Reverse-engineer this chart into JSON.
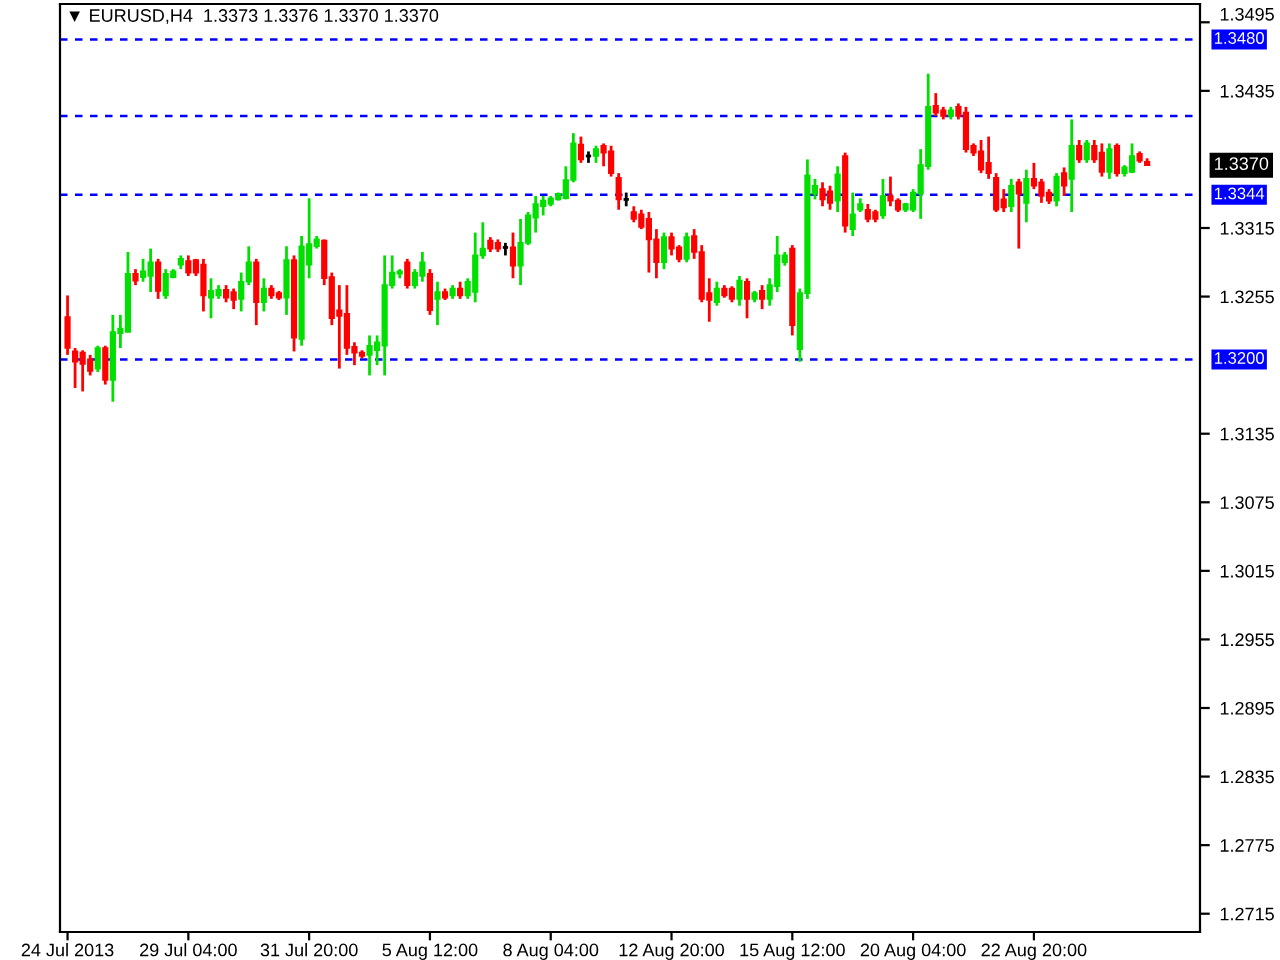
{
  "chart_data": {
    "type": "candlestick",
    "title": "▼ EURUSD,H4  1.3373 1.3376 1.3370 1.3370",
    "categories": [
      "24 Jul 2013",
      null,
      null,
      null,
      null,
      null,
      null,
      null,
      null,
      null,
      null,
      null,
      null,
      null,
      null,
      null,
      "29 Jul 04:00",
      null,
      null,
      null,
      null,
      null,
      null,
      null,
      null,
      null,
      null,
      null,
      null,
      null,
      null,
      null,
      "31 Jul 20:00",
      null,
      null,
      null,
      null,
      null,
      null,
      null,
      null,
      null,
      null,
      null,
      null,
      null,
      null,
      null,
      "5 Aug 12:00",
      null,
      null,
      null,
      null,
      null,
      null,
      null,
      null,
      null,
      null,
      null,
      null,
      null,
      null,
      null,
      "8 Aug 04:00",
      null,
      null,
      null,
      null,
      null,
      null,
      null,
      null,
      null,
      null,
      null,
      null,
      null,
      null,
      null,
      "12 Aug 20:00",
      null,
      null,
      null,
      null,
      null,
      null,
      null,
      null,
      null,
      null,
      null,
      null,
      null,
      null,
      null,
      "15 Aug 12:00",
      null,
      null,
      null,
      null,
      null,
      null,
      null,
      null,
      null,
      null,
      null,
      null,
      null,
      null,
      null,
      "20 Aug 04:00",
      null,
      null,
      null,
      null,
      null,
      null,
      null,
      null,
      null,
      null,
      null,
      null,
      null,
      null,
      null,
      "22 Aug 20:00",
      null,
      null,
      null,
      null,
      null,
      null,
      null,
      null,
      null,
      null,
      null,
      null,
      null,
      null,
      null
    ],
    "ohlc": [
      [
        1.3237,
        1.3256,
        1.3204,
        1.321
      ],
      [
        1.3207,
        1.321,
        1.3175,
        1.3198
      ],
      [
        1.3206,
        1.3208,
        1.3172,
        1.3196
      ],
      [
        1.32,
        1.3204,
        1.3186,
        1.319
      ],
      [
        1.3192,
        1.3212,
        1.3189,
        1.321
      ],
      [
        1.321,
        1.3212,
        1.3178,
        1.3182
      ],
      [
        1.3182,
        1.3239,
        1.3163,
        1.3224
      ],
      [
        1.3223,
        1.3239,
        1.321,
        1.3227
      ],
      [
        1.3224,
        1.3294,
        1.3224,
        1.3275
      ],
      [
        1.3275,
        1.3279,
        1.3265,
        1.3269
      ],
      [
        1.3272,
        1.3288,
        1.3268,
        1.3277
      ],
      [
        1.3273,
        1.3297,
        1.3259,
        1.3285
      ],
      [
        1.3285,
        1.3288,
        1.3253,
        1.326
      ],
      [
        1.3256,
        1.3279,
        1.3253,
        1.3275
      ],
      [
        1.3272,
        1.3279,
        1.3271,
        1.3277
      ],
      [
        1.3283,
        1.3291,
        1.3279,
        1.3288
      ],
      [
        1.3286,
        1.3291,
        1.3273,
        1.3276
      ],
      [
        1.3287,
        1.3288,
        1.3273,
        1.3276
      ],
      [
        1.3283,
        1.3288,
        1.3242,
        1.3256
      ],
      [
        1.3254,
        1.3271,
        1.3236,
        1.326
      ],
      [
        1.3256,
        1.3265,
        1.3253,
        1.3261
      ],
      [
        1.3261,
        1.3265,
        1.325,
        1.3254
      ],
      [
        1.3259,
        1.3262,
        1.3244,
        1.3252
      ],
      [
        1.3253,
        1.3276,
        1.3242,
        1.3268
      ],
      [
        1.3268,
        1.3299,
        1.3265,
        1.3285
      ],
      [
        1.3285,
        1.3288,
        1.323,
        1.325
      ],
      [
        1.325,
        1.3271,
        1.3242,
        1.3262
      ],
      [
        1.3262,
        1.3265,
        1.3253,
        1.3256
      ],
      [
        1.3258,
        1.326,
        1.3252,
        1.3254
      ],
      [
        1.3254,
        1.3299,
        1.3239,
        1.3287
      ],
      [
        1.3287,
        1.3291,
        1.3207,
        1.3219
      ],
      [
        1.3218,
        1.3308,
        1.3212,
        1.3299
      ],
      [
        1.3283,
        1.3341,
        1.3271,
        1.3301
      ],
      [
        1.3299,
        1.3308,
        1.3297,
        1.3305
      ],
      [
        1.3304,
        1.3305,
        1.3265,
        1.3271
      ],
      [
        1.3272,
        1.3276,
        1.323,
        1.3236
      ],
      [
        1.3243,
        1.3265,
        1.3192,
        1.3238
      ],
      [
        1.324,
        1.3265,
        1.3204,
        1.321
      ],
      [
        1.3211,
        1.3215,
        1.3195,
        1.3206
      ],
      [
        1.3206,
        1.3208,
        1.3201,
        1.3203
      ],
      [
        1.3204,
        1.3221,
        1.3186,
        1.3212
      ],
      [
        1.3208,
        1.3221,
        1.3195,
        1.3215
      ],
      [
        1.3212,
        1.3291,
        1.3186,
        1.3265
      ],
      [
        1.3265,
        1.3291,
        1.3262,
        1.3276
      ],
      [
        1.3275,
        1.3279,
        1.3271,
        1.3277
      ],
      [
        1.3285,
        1.3288,
        1.3262,
        1.3265
      ],
      [
        1.3265,
        1.3279,
        1.3262,
        1.3276
      ],
      [
        1.3273,
        1.3294,
        1.3268,
        1.3285
      ],
      [
        1.3275,
        1.3279,
        1.3239,
        1.3243
      ],
      [
        1.3253,
        1.3268,
        1.323,
        1.3259
      ],
      [
        1.3259,
        1.3262,
        1.3252,
        1.3254
      ],
      [
        1.3256,
        1.3265,
        1.3253,
        1.3262
      ],
      [
        1.3262,
        1.3268,
        1.3253,
        1.3256
      ],
      [
        1.3256,
        1.3271,
        1.3253,
        1.3268
      ],
      [
        1.3259,
        1.3311,
        1.325,
        1.3291
      ],
      [
        1.3291,
        1.332,
        1.3288,
        1.3297
      ],
      [
        1.3304,
        1.3307,
        1.3294,
        1.3297
      ],
      [
        1.3302,
        1.3305,
        1.3294,
        1.3297
      ],
      [
        1.3298,
        1.3302,
        1.3291,
        1.3298
      ],
      [
        1.3298,
        1.3311,
        1.3271,
        1.3282
      ],
      [
        1.3282,
        1.3323,
        1.3265,
        1.3302
      ],
      [
        1.3302,
        1.3329,
        1.33,
        1.3326
      ],
      [
        1.3324,
        1.3343,
        1.3311,
        1.3336
      ],
      [
        1.3334,
        1.3343,
        1.3326,
        1.3339
      ],
      [
        1.3336,
        1.3343,
        1.3334,
        1.3341
      ],
      [
        1.334,
        1.3346,
        1.3339,
        1.3345
      ],
      [
        1.3341,
        1.3369,
        1.334,
        1.3357
      ],
      [
        1.3357,
        1.3398,
        1.3355,
        1.3389
      ],
      [
        1.3388,
        1.3395,
        1.3372,
        1.3375
      ],
      [
        1.3378,
        1.3382,
        1.3372,
        1.3378
      ],
      [
        1.3378,
        1.3387,
        1.3372,
        1.3384
      ],
      [
        1.3387,
        1.3389,
        1.3369,
        1.3381
      ],
      [
        1.3382,
        1.3387,
        1.336,
        1.3363
      ],
      [
        1.3359,
        1.3363,
        1.3331,
        1.334
      ],
      [
        1.334,
        1.3346,
        1.3334,
        1.334
      ],
      [
        1.3329,
        1.3334,
        1.332,
        1.3323
      ],
      [
        1.3327,
        1.3331,
        1.3314,
        1.3316
      ],
      [
        1.3323,
        1.3329,
        1.3276,
        1.3305
      ],
      [
        1.3305,
        1.3314,
        1.3271,
        1.3285
      ],
      [
        1.3285,
        1.3311,
        1.3279,
        1.3307
      ],
      [
        1.3307,
        1.3311,
        1.3291,
        1.3297
      ],
      [
        1.3298,
        1.33,
        1.3285,
        1.3288
      ],
      [
        1.3288,
        1.3311,
        1.3285,
        1.3307
      ],
      [
        1.3308,
        1.3314,
        1.3288,
        1.3294
      ],
      [
        1.3294,
        1.33,
        1.325,
        1.3253
      ],
      [
        1.3258,
        1.3271,
        1.3233,
        1.3252
      ],
      [
        1.325,
        1.3268,
        1.3247,
        1.3262
      ],
      [
        1.3262,
        1.3265,
        1.3254,
        1.3256
      ],
      [
        1.3262,
        1.3264,
        1.325,
        1.3253
      ],
      [
        1.3253,
        1.3273,
        1.3247,
        1.3269
      ],
      [
        1.3268,
        1.3271,
        1.3236,
        1.3253
      ],
      [
        1.3253,
        1.326,
        1.325,
        1.3258
      ],
      [
        1.326,
        1.3265,
        1.3244,
        1.3253
      ],
      [
        1.3253,
        1.3271,
        1.3247,
        1.3265
      ],
      [
        1.3264,
        1.3308,
        1.3259,
        1.3291
      ],
      [
        1.3285,
        1.3294,
        1.3282,
        1.3291
      ],
      [
        1.3297,
        1.33,
        1.3221,
        1.323
      ],
      [
        1.3209,
        1.3262,
        1.3198,
        1.3258
      ],
      [
        1.3258,
        1.3375,
        1.3253,
        1.3361
      ],
      [
        1.3345,
        1.3358,
        1.334,
        1.3352
      ],
      [
        1.3349,
        1.3355,
        1.3334,
        1.334
      ],
      [
        1.3347,
        1.3352,
        1.3331,
        1.3337
      ],
      [
        1.3339,
        1.3369,
        1.3329,
        1.3362
      ],
      [
        1.3378,
        1.3381,
        1.3311,
        1.3317
      ],
      [
        1.3314,
        1.3346,
        1.3308,
        1.3327
      ],
      [
        1.3331,
        1.3341,
        1.3329,
        1.3336
      ],
      [
        1.3331,
        1.3336,
        1.332,
        1.3323
      ],
      [
        1.3329,
        1.3331,
        1.332,
        1.3323
      ],
      [
        1.3326,
        1.3358,
        1.3323,
        1.3343
      ],
      [
        1.3343,
        1.336,
        1.3334,
        1.3339
      ],
      [
        1.3339,
        1.3341,
        1.3329,
        1.3331
      ],
      [
        1.3331,
        1.3337,
        1.3329,
        1.3336
      ],
      [
        1.3331,
        1.3349,
        1.3329,
        1.3346
      ],
      [
        1.3345,
        1.3384,
        1.3323,
        1.337
      ],
      [
        1.3369,
        1.345,
        1.3366,
        1.3421
      ],
      [
        1.3422,
        1.3433,
        1.3413,
        1.3416
      ],
      [
        1.3418,
        1.3421,
        1.341,
        1.3413
      ],
      [
        1.3413,
        1.3421,
        1.341,
        1.3418
      ],
      [
        1.3421,
        1.3424,
        1.341,
        1.3413
      ],
      [
        1.3416,
        1.3421,
        1.3381,
        1.3384
      ],
      [
        1.3387,
        1.3389,
        1.3378,
        1.3381
      ],
      [
        1.3382,
        1.3392,
        1.3363,
        1.3366
      ],
      [
        1.3372,
        1.3395,
        1.3358,
        1.3363
      ],
      [
        1.3359,
        1.3363,
        1.3329,
        1.3331
      ],
      [
        1.334,
        1.3349,
        1.3329,
        1.3333
      ],
      [
        1.3334,
        1.3358,
        1.3329,
        1.3352
      ],
      [
        1.3355,
        1.3358,
        1.3297,
        1.3345
      ],
      [
        1.3337,
        1.3366,
        1.332,
        1.3358
      ],
      [
        1.3358,
        1.3372,
        1.3349,
        1.3352
      ],
      [
        1.3355,
        1.3358,
        1.3337,
        1.3343
      ],
      [
        1.3346,
        1.3349,
        1.3336,
        1.3339
      ],
      [
        1.3339,
        1.3363,
        1.3334,
        1.336
      ],
      [
        1.3363,
        1.3368,
        1.3343,
        1.3352
      ],
      [
        1.3358,
        1.341,
        1.3329,
        1.3387
      ],
      [
        1.3387,
        1.3392,
        1.3372,
        1.3375
      ],
      [
        1.3375,
        1.3392,
        1.3372,
        1.3389
      ],
      [
        1.3387,
        1.3392,
        1.3372,
        1.3375
      ],
      [
        1.3381,
        1.3389,
        1.336,
        1.3364
      ],
      [
        1.3364,
        1.3389,
        1.3358,
        1.3384
      ],
      [
        1.3387,
        1.3389,
        1.336,
        1.3363
      ],
      [
        1.3363,
        1.337,
        1.336,
        1.3368
      ],
      [
        1.3364,
        1.3389,
        1.3363,
        1.3378
      ],
      [
        1.338,
        1.3382,
        1.3372,
        1.3374
      ],
      [
        1.3373,
        1.3376,
        1.337,
        1.337
      ]
    ],
    "colors": [
      "#ff0000",
      "#ff0000",
      "#ff0000",
      "#ff0000",
      "#00e000",
      "#ff0000",
      "#00e000",
      "#00e000",
      "#00e000",
      "#ff0000",
      "#00e000",
      "#00e000",
      "#ff0000",
      "#00e000",
      "#00e000",
      "#00e000",
      "#ff0000",
      "#ff0000",
      "#ff0000",
      "#00e000",
      "#00e000",
      "#ff0000",
      "#ff0000",
      "#00e000",
      "#00e000",
      "#ff0000",
      "#00e000",
      "#ff0000",
      "#ff0000",
      "#00e000",
      "#ff0000",
      "#00e000",
      "#00e000",
      "#00e000",
      "#ff0000",
      "#ff0000",
      "#ff0000",
      "#ff0000",
      "#ff0000",
      "#ff0000",
      "#00e000",
      "#00e000",
      "#00e000",
      "#00e000",
      "#00e000",
      "#ff0000",
      "#00e000",
      "#00e000",
      "#ff0000",
      "#00e000",
      "#ff0000",
      "#00e000",
      "#ff0000",
      "#00e000",
      "#00e000",
      "#00e000",
      "#ff0000",
      "#ff0000",
      "#000000",
      "#ff0000",
      "#00e000",
      "#00e000",
      "#00e000",
      "#00e000",
      "#00e000",
      "#00e000",
      "#00e000",
      "#00e000",
      "#ff0000",
      "#000000",
      "#00e000",
      "#ff0000",
      "#ff0000",
      "#ff0000",
      "#000000",
      "#ff0000",
      "#ff0000",
      "#ff0000",
      "#ff0000",
      "#00e000",
      "#ff0000",
      "#ff0000",
      "#00e000",
      "#ff0000",
      "#ff0000",
      "#ff0000",
      "#00e000",
      "#ff0000",
      "#ff0000",
      "#00e000",
      "#ff0000",
      "#00e000",
      "#ff0000",
      "#00e000",
      "#00e000",
      "#00e000",
      "#ff0000",
      "#00e000",
      "#00e000",
      "#00e000",
      "#ff0000",
      "#ff0000",
      "#00e000",
      "#ff0000",
      "#00e000",
      "#00e000",
      "#ff0000",
      "#ff0000",
      "#00e000",
      "#ff0000",
      "#ff0000",
      "#00e000",
      "#00e000",
      "#00e000",
      "#00e000",
      "#ff0000",
      "#ff0000",
      "#00e000",
      "#ff0000",
      "#ff0000",
      "#ff0000",
      "#ff0000",
      "#ff0000",
      "#ff0000",
      "#ff0000",
      "#00e000",
      "#ff0000",
      "#00e000",
      "#ff0000",
      "#ff0000",
      "#ff0000",
      "#00e000",
      "#ff0000",
      "#00e000",
      "#ff0000",
      "#00e000",
      "#ff0000",
      "#ff0000",
      "#00e000",
      "#ff0000",
      "#00e000",
      "#00e000",
      "#ff0000",
      "#ff0000"
    ],
    "ylim": [
      1.2699,
      1.3511
    ],
    "yticks": [
      1.3495,
      1.3435,
      1.3315,
      1.3255,
      1.3135,
      1.3075,
      1.3015,
      1.2955,
      1.2895,
      1.2835,
      1.2775,
      1.2715
    ],
    "ref_lines": [
      {
        "axis": "y",
        "value": 1.348,
        "label": "1.3480",
        "color": "#0000ff",
        "line_style": "dashed"
      },
      {
        "axis": "y",
        "value": 1.3344,
        "label": "1.3344",
        "color": "#0000ff",
        "line_style": "dashed"
      },
      {
        "axis": "y",
        "value": 1.32,
        "label": "1.3200",
        "color": "#0000ff",
        "line_style": "dashed"
      },
      {
        "axis": "y",
        "value": 1.3413,
        "color": "#0000ff",
        "line_style": "dashed"
      }
    ],
    "annotations": [
      "1.3370"
    ],
    "grid": false,
    "legend": false
  }
}
